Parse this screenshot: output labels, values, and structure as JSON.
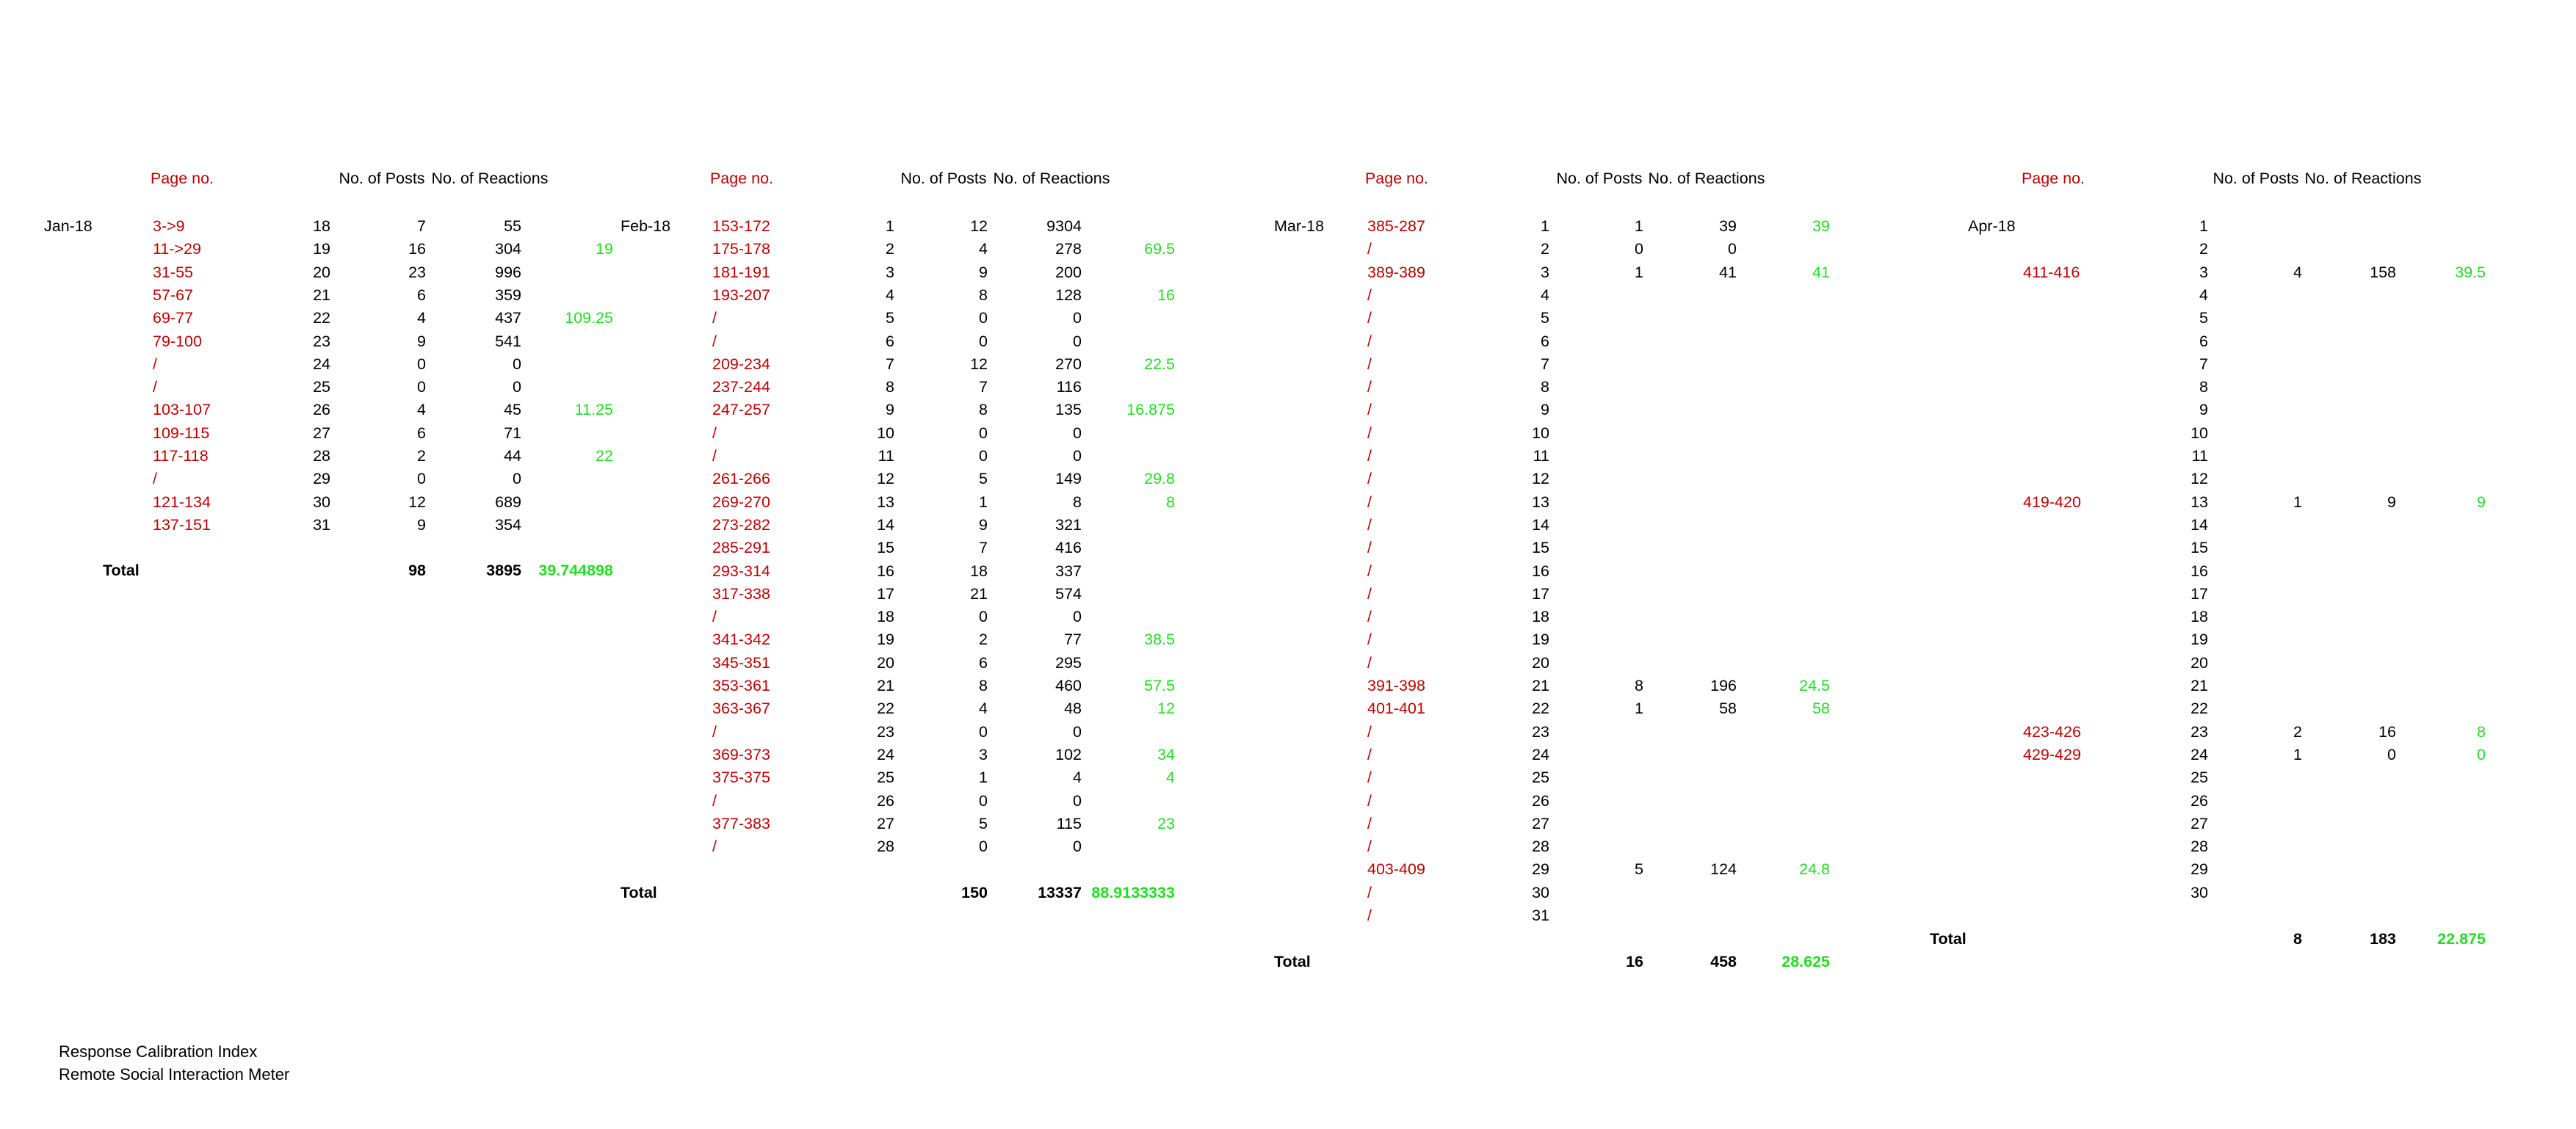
{
  "colors": {
    "page_text": "#c00000",
    "average": "#22dd22",
    "text": "#000000"
  },
  "headers": {
    "page": "Page no.",
    "posts": "No. of Posts",
    "reactions": "No. of Reactions"
  },
  "total_label": "Total",
  "blocks": [
    {
      "month": "Jan-18",
      "rows": [
        {
          "page": "3->9",
          "day": "18",
          "posts": "7",
          "reactions": "55",
          "avg": ""
        },
        {
          "page": "11->29",
          "day": "19",
          "posts": "16",
          "reactions": "304",
          "avg": "19"
        },
        {
          "page": "31-55",
          "day": "20",
          "posts": "23",
          "reactions": "996",
          "avg": ""
        },
        {
          "page": "57-67",
          "day": "21",
          "posts": "6",
          "reactions": "359",
          "avg": ""
        },
        {
          "page": "69-77",
          "day": "22",
          "posts": "4",
          "reactions": "437",
          "avg": "109.25"
        },
        {
          "page": "79-100",
          "day": "23",
          "posts": "9",
          "reactions": "541",
          "avg": ""
        },
        {
          "page": "/",
          "day": "24",
          "posts": "0",
          "reactions": "0",
          "avg": ""
        },
        {
          "page": "/",
          "day": "25",
          "posts": "0",
          "reactions": "0",
          "avg": ""
        },
        {
          "page": "103-107",
          "day": "26",
          "posts": "4",
          "reactions": "45",
          "avg": "11.25"
        },
        {
          "page": "109-115",
          "day": "27",
          "posts": "6",
          "reactions": "71",
          "avg": ""
        },
        {
          "page": "117-118",
          "day": "28",
          "posts": "2",
          "reactions": "44",
          "avg": "22"
        },
        {
          "page": "/",
          "day": "29",
          "posts": "0",
          "reactions": "0",
          "avg": ""
        },
        {
          "page": "121-134",
          "day": "30",
          "posts": "12",
          "reactions": "689",
          "avg": ""
        },
        {
          "page": "137-151",
          "day": "31",
          "posts": "9",
          "reactions": "354",
          "avg": ""
        }
      ],
      "total": {
        "posts": "98",
        "reactions": "3895",
        "avg": "39.744898"
      }
    },
    {
      "month": "Feb-18",
      "rows": [
        {
          "page": "153-172",
          "day": "1",
          "posts": "12",
          "reactions": "9304",
          "avg": ""
        },
        {
          "page": "175-178",
          "day": "2",
          "posts": "4",
          "reactions": "278",
          "avg": "69.5"
        },
        {
          "page": "181-191",
          "day": "3",
          "posts": "9",
          "reactions": "200",
          "avg": ""
        },
        {
          "page": "193-207",
          "day": "4",
          "posts": "8",
          "reactions": "128",
          "avg": "16"
        },
        {
          "page": "/",
          "day": "5",
          "posts": "0",
          "reactions": "0",
          "avg": ""
        },
        {
          "page": "/",
          "day": "6",
          "posts": "0",
          "reactions": "0",
          "avg": ""
        },
        {
          "page": "209-234",
          "day": "7",
          "posts": "12",
          "reactions": "270",
          "avg": "22.5"
        },
        {
          "page": "237-244",
          "day": "8",
          "posts": "7",
          "reactions": "116",
          "avg": ""
        },
        {
          "page": "247-257",
          "day": "9",
          "posts": "8",
          "reactions": "135",
          "avg": "16.875"
        },
        {
          "page": "/",
          "day": "10",
          "posts": "0",
          "reactions": "0",
          "avg": ""
        },
        {
          "page": "/",
          "day": "11",
          "posts": "0",
          "reactions": "0",
          "avg": ""
        },
        {
          "page": "261-266",
          "day": "12",
          "posts": "5",
          "reactions": "149",
          "avg": "29.8"
        },
        {
          "page": "269-270",
          "day": "13",
          "posts": "1",
          "reactions": "8",
          "avg": "8"
        },
        {
          "page": "273-282",
          "day": "14",
          "posts": "9",
          "reactions": "321",
          "avg": ""
        },
        {
          "page": "285-291",
          "day": "15",
          "posts": "7",
          "reactions": "416",
          "avg": ""
        },
        {
          "page": "293-314",
          "day": "16",
          "posts": "18",
          "reactions": "337",
          "avg": ""
        },
        {
          "page": "317-338",
          "day": "17",
          "posts": "21",
          "reactions": "574",
          "avg": ""
        },
        {
          "page": "/",
          "day": "18",
          "posts": "0",
          "reactions": "0",
          "avg": ""
        },
        {
          "page": "341-342",
          "day": "19",
          "posts": "2",
          "reactions": "77",
          "avg": "38.5"
        },
        {
          "page": "345-351",
          "day": "20",
          "posts": "6",
          "reactions": "295",
          "avg": ""
        },
        {
          "page": "353-361",
          "day": "21",
          "posts": "8",
          "reactions": "460",
          "avg": "57.5"
        },
        {
          "page": "363-367",
          "day": "22",
          "posts": "4",
          "reactions": "48",
          "avg": "12"
        },
        {
          "page": "/",
          "day": "23",
          "posts": "0",
          "reactions": "0",
          "avg": ""
        },
        {
          "page": "369-373",
          "day": "24",
          "posts": "3",
          "reactions": "102",
          "avg": "34"
        },
        {
          "page": "375-375",
          "day": "25",
          "posts": "1",
          "reactions": "4",
          "avg": "4"
        },
        {
          "page": "/",
          "day": "26",
          "posts": "0",
          "reactions": "0",
          "avg": ""
        },
        {
          "page": "377-383",
          "day": "27",
          "posts": "5",
          "reactions": "115",
          "avg": "23"
        },
        {
          "page": "/",
          "day": "28",
          "posts": "0",
          "reactions": "0",
          "avg": ""
        }
      ],
      "total": {
        "posts": "150",
        "reactions": "13337",
        "avg": "88.9133333"
      }
    },
    {
      "month": "Mar-18",
      "rows": [
        {
          "page": "385-287",
          "day": "1",
          "posts": "1",
          "reactions": "39",
          "avg": "39"
        },
        {
          "page": "/",
          "day": "2",
          "posts": "0",
          "reactions": "0",
          "avg": ""
        },
        {
          "page": "389-389",
          "day": "3",
          "posts": "1",
          "reactions": "41",
          "avg": "41"
        },
        {
          "page": "/",
          "day": "4",
          "posts": "",
          "reactions": "",
          "avg": ""
        },
        {
          "page": "/",
          "day": "5",
          "posts": "",
          "reactions": "",
          "avg": ""
        },
        {
          "page": "/",
          "day": "6",
          "posts": "",
          "reactions": "",
          "avg": ""
        },
        {
          "page": "/",
          "day": "7",
          "posts": "",
          "reactions": "",
          "avg": ""
        },
        {
          "page": "/",
          "day": "8",
          "posts": "",
          "reactions": "",
          "avg": ""
        },
        {
          "page": "/",
          "day": "9",
          "posts": "",
          "reactions": "",
          "avg": ""
        },
        {
          "page": "/",
          "day": "10",
          "posts": "",
          "reactions": "",
          "avg": ""
        },
        {
          "page": "/",
          "day": "11",
          "posts": "",
          "reactions": "",
          "avg": ""
        },
        {
          "page": "/",
          "day": "12",
          "posts": "",
          "reactions": "",
          "avg": ""
        },
        {
          "page": "/",
          "day": "13",
          "posts": "",
          "reactions": "",
          "avg": ""
        },
        {
          "page": "/",
          "day": "14",
          "posts": "",
          "reactions": "",
          "avg": ""
        },
        {
          "page": "/",
          "day": "15",
          "posts": "",
          "reactions": "",
          "avg": ""
        },
        {
          "page": "/",
          "day": "16",
          "posts": "",
          "reactions": "",
          "avg": ""
        },
        {
          "page": "/",
          "day": "17",
          "posts": "",
          "reactions": "",
          "avg": ""
        },
        {
          "page": "/",
          "day": "18",
          "posts": "",
          "reactions": "",
          "avg": ""
        },
        {
          "page": "/",
          "day": "19",
          "posts": "",
          "reactions": "",
          "avg": ""
        },
        {
          "page": "/",
          "day": "20",
          "posts": "",
          "reactions": "",
          "avg": ""
        },
        {
          "page": "391-398",
          "day": "21",
          "posts": "8",
          "reactions": "196",
          "avg": "24.5"
        },
        {
          "page": "401-401",
          "day": "22",
          "posts": "1",
          "reactions": "58",
          "avg": "58"
        },
        {
          "page": "/",
          "day": "23",
          "posts": "",
          "reactions": "",
          "avg": ""
        },
        {
          "page": "/",
          "day": "24",
          "posts": "",
          "reactions": "",
          "avg": ""
        },
        {
          "page": "/",
          "day": "25",
          "posts": "",
          "reactions": "",
          "avg": ""
        },
        {
          "page": "/",
          "day": "26",
          "posts": "",
          "reactions": "",
          "avg": ""
        },
        {
          "page": "/",
          "day": "27",
          "posts": "",
          "reactions": "",
          "avg": ""
        },
        {
          "page": "/",
          "day": "28",
          "posts": "",
          "reactions": "",
          "avg": ""
        },
        {
          "page": "403-409",
          "day": "29",
          "posts": "5",
          "reactions": "124",
          "avg": "24.8"
        },
        {
          "page": "/",
          "day": "30",
          "posts": "",
          "reactions": "",
          "avg": ""
        },
        {
          "page": "/",
          "day": "31",
          "posts": "",
          "reactions": "",
          "avg": ""
        }
      ],
      "total": {
        "posts": "16",
        "reactions": "458",
        "avg": "28.625"
      }
    },
    {
      "month": "Apr-18",
      "rows": [
        {
          "page": "",
          "day": "1",
          "posts": "",
          "reactions": "",
          "avg": ""
        },
        {
          "page": "",
          "day": "2",
          "posts": "",
          "reactions": "",
          "avg": ""
        },
        {
          "page": "411-416",
          "day": "3",
          "posts": "4",
          "reactions": "158",
          "avg": "39.5"
        },
        {
          "page": "",
          "day": "4",
          "posts": "",
          "reactions": "",
          "avg": ""
        },
        {
          "page": "",
          "day": "5",
          "posts": "",
          "reactions": "",
          "avg": ""
        },
        {
          "page": "",
          "day": "6",
          "posts": "",
          "reactions": "",
          "avg": ""
        },
        {
          "page": "",
          "day": "7",
          "posts": "",
          "reactions": "",
          "avg": ""
        },
        {
          "page": "",
          "day": "8",
          "posts": "",
          "reactions": "",
          "avg": ""
        },
        {
          "page": "",
          "day": "9",
          "posts": "",
          "reactions": "",
          "avg": ""
        },
        {
          "page": "",
          "day": "10",
          "posts": "",
          "reactions": "",
          "avg": ""
        },
        {
          "page": "",
          "day": "11",
          "posts": "",
          "reactions": "",
          "avg": ""
        },
        {
          "page": "",
          "day": "12",
          "posts": "",
          "reactions": "",
          "avg": ""
        },
        {
          "page": "419-420",
          "day": "13",
          "posts": "1",
          "reactions": "9",
          "avg": "9"
        },
        {
          "page": "",
          "day": "14",
          "posts": "",
          "reactions": "",
          "avg": ""
        },
        {
          "page": "",
          "day": "15",
          "posts": "",
          "reactions": "",
          "avg": ""
        },
        {
          "page": "",
          "day": "16",
          "posts": "",
          "reactions": "",
          "avg": ""
        },
        {
          "page": "",
          "day": "17",
          "posts": "",
          "reactions": "",
          "avg": ""
        },
        {
          "page": "",
          "day": "18",
          "posts": "",
          "reactions": "",
          "avg": ""
        },
        {
          "page": "",
          "day": "19",
          "posts": "",
          "reactions": "",
          "avg": ""
        },
        {
          "page": "",
          "day": "20",
          "posts": "",
          "reactions": "",
          "avg": ""
        },
        {
          "page": "",
          "day": "21",
          "posts": "",
          "reactions": "",
          "avg": ""
        },
        {
          "page": "",
          "day": "22",
          "posts": "",
          "reactions": "",
          "avg": ""
        },
        {
          "page": "423-426",
          "day": "23",
          "posts": "2",
          "reactions": "16",
          "avg": "8"
        },
        {
          "page": "429-429",
          "day": "24",
          "posts": "1",
          "reactions": "0",
          "avg": "0"
        },
        {
          "page": "",
          "day": "25",
          "posts": "",
          "reactions": "",
          "avg": ""
        },
        {
          "page": "",
          "day": "26",
          "posts": "",
          "reactions": "",
          "avg": ""
        },
        {
          "page": "",
          "day": "27",
          "posts": "",
          "reactions": "",
          "avg": ""
        },
        {
          "page": "",
          "day": "28",
          "posts": "",
          "reactions": "",
          "avg": ""
        },
        {
          "page": "",
          "day": "29",
          "posts": "",
          "reactions": "",
          "avg": ""
        },
        {
          "page": "",
          "day": "30",
          "posts": "",
          "reactions": "",
          "avg": ""
        }
      ],
      "total": {
        "posts": "8",
        "reactions": "183",
        "avg": "22.875"
      }
    }
  ],
  "footer": {
    "line1": "Response Calibration Index",
    "line2": "Remote Social Interaction Meter"
  }
}
